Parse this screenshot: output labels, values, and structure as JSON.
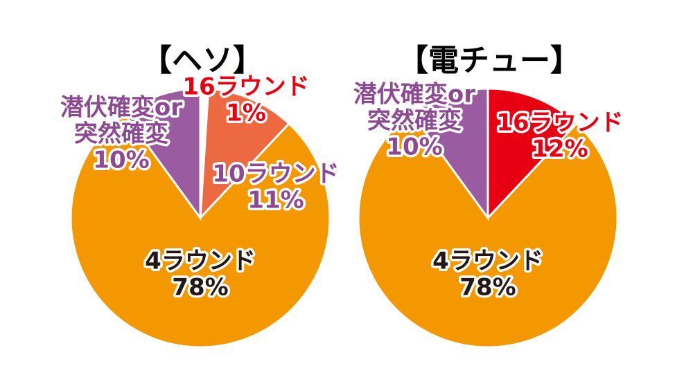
{
  "chart_data": [
    {
      "type": "pie",
      "title": "【ヘソ】",
      "slices": [
        {
          "label": [
            "16ラウンド",
            "1%"
          ],
          "value": 1,
          "color": "#ffffff",
          "text_color": "#e60012"
        },
        {
          "label": [
            "10ラウンド",
            "11%"
          ],
          "value": 11,
          "color": "#ec6941",
          "text_color": "#8b4a92"
        },
        {
          "label": [
            "4ラウンド",
            "78%"
          ],
          "value": 78,
          "color": "#f39800",
          "text_color": "#231815"
        },
        {
          "label": [
            "潜伏確変or",
            "突然確変",
            "10%"
          ],
          "value": 10,
          "color": "#9a5ba1",
          "text_color": "#8b4a92"
        }
      ]
    },
    {
      "type": "pie",
      "title": "【電チュー】",
      "slices": [
        {
          "label": [
            "16ラウンド",
            "12%"
          ],
          "value": 12,
          "color": "#e60012",
          "text_color": "#e60012"
        },
        {
          "label": [
            "4ラウンド",
            "78%"
          ],
          "value": 78,
          "color": "#f39800",
          "text_color": "#231815"
        },
        {
          "label": [
            "潜伏確変or",
            "突然確変",
            "10%"
          ],
          "value": 10,
          "color": "#9a5ba1",
          "text_color": "#8b4a92"
        }
      ]
    }
  ]
}
